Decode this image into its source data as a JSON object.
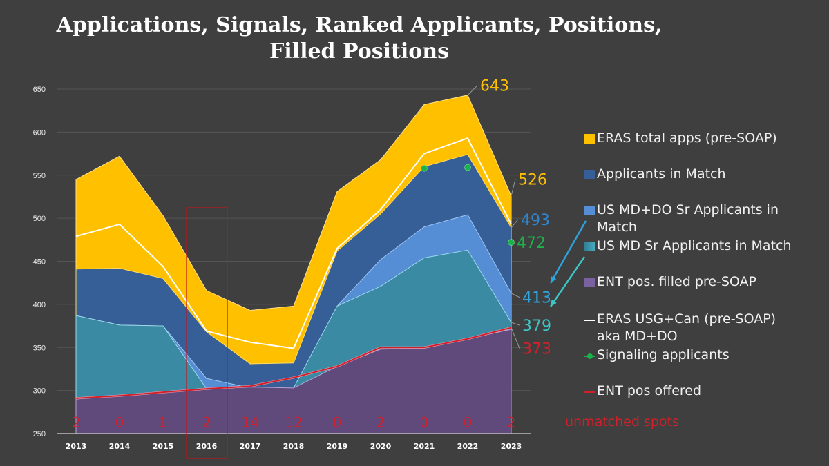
{
  "chart_data": {
    "type": "area",
    "title": "Applications, Signals, Ranked Applicants, Positions, Filled Positions",
    "title_lines": [
      "Applications, Signals, Ranked Applicants, Positions,",
      "Filled Positions"
    ],
    "xlabel": "",
    "ylabel": "",
    "ylim": [
      250,
      650
    ],
    "yticks": [
      250,
      300,
      350,
      400,
      450,
      500,
      550,
      600,
      650
    ],
    "grid": true,
    "legend_position": "right",
    "categories": [
      "2013",
      "2014",
      "2015",
      "2016",
      "2017",
      "2018",
      "2019",
      "2020",
      "2021",
      "2022",
      "2023"
    ],
    "series": [
      {
        "name": "ERAS total apps (pre-SOAP)",
        "kind": "area",
        "color": "#ffc000",
        "values": [
          545,
          572,
          503,
          416,
          393,
          398,
          531,
          568,
          632,
          643,
          526
        ]
      },
      {
        "name": "Applicants in Match",
        "kind": "area",
        "color": "#355f96",
        "values": [
          441,
          442,
          430,
          368,
          331,
          332,
          462,
          505,
          560,
          574,
          489
        ]
      },
      {
        "name": "US MD+DO Sr Applicants in Match",
        "kind": "area",
        "color": "#558ed5",
        "values": [
          387,
          376,
          375,
          314,
          303,
          300,
          398,
          452,
          490,
          504,
          413
        ]
      },
      {
        "name": "US MD Sr Applicants in Match",
        "kind": "area",
        "color": "#3a8aa3",
        "values": [
          387,
          376,
          375,
          302,
          291,
          303,
          398,
          421,
          454,
          463,
          379
        ]
      },
      {
        "name": "ENT pos. filled pre-SOAP",
        "kind": "area",
        "color": "#604a7b",
        "values": [
          290,
          294,
          298,
          302,
          304,
          303,
          328,
          348,
          349,
          360,
          371
        ]
      },
      {
        "name": "ERAS USG+Can (pre-SOAP) aka MD+DO",
        "kind": "line",
        "color": "#ffffff",
        "values": [
          479,
          493,
          444,
          369,
          356,
          349,
          465,
          510,
          575,
          593,
          493
        ]
      },
      {
        "name": "Signaling applicants",
        "kind": "marker",
        "color": "#1bb24b",
        "values": [
          null,
          null,
          null,
          null,
          null,
          null,
          null,
          null,
          558,
          559,
          472
        ]
      },
      {
        "name": "ENT pos offered",
        "kind": "line",
        "color": "#d0202a",
        "values": [
          291,
          294,
          298,
          302,
          305,
          315,
          328,
          350,
          350,
          360,
          373
        ]
      }
    ],
    "unmatched_spots": [
      2,
      0,
      1,
      2,
      14,
      12,
      0,
      2,
      0,
      0,
      2
    ],
    "unmatched_label": "unmatched spots",
    "annotations": [
      {
        "text": "643",
        "color": "#ffc000"
      },
      {
        "text": "526",
        "color": "#ffc000"
      },
      {
        "text": "493",
        "color": "#2e86d0"
      },
      {
        "text": "472",
        "color": "#1bb24b"
      },
      {
        "text": "413",
        "color": "#2ea4dc"
      },
      {
        "text": "379",
        "color": "#3ec6c6"
      },
      {
        "text": "373",
        "color": "#d0202a"
      }
    ],
    "highlight_year": "2016"
  },
  "legend": [
    {
      "label": "ERAS total apps (pre-SOAP)"
    },
    {
      "label": "Applicants in Match"
    },
    {
      "label": "US MD+DO Sr Applicants in"
    },
    {
      "label": "Match"
    },
    {
      "label": "US MD Sr Applicants in Match"
    },
    {
      "label": "ENT pos. filled pre-SOAP"
    },
    {
      "label": "ERAS USG+Can (pre-SOAP)"
    },
    {
      "label": "aka MD+DO"
    },
    {
      "label": "Signaling applicants"
    },
    {
      "label": "ENT pos offered"
    }
  ]
}
